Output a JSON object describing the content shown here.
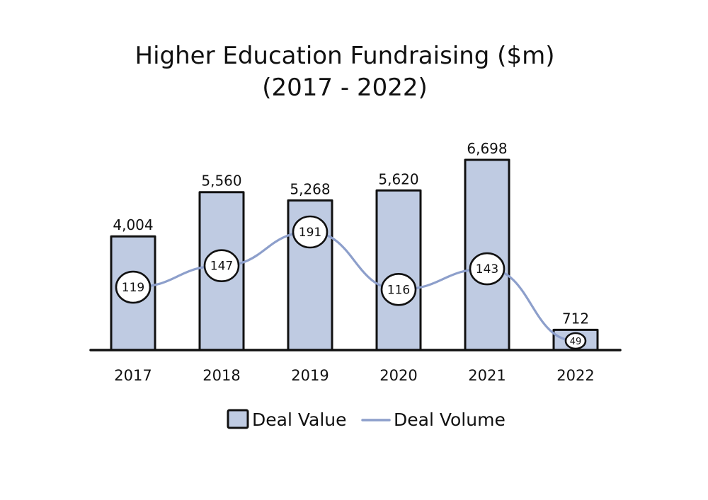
{
  "chart_data": {
    "type": "bar",
    "title": "Higher Education Fundraising ($m)",
    "subtitle": "(2017 - 2022)",
    "categories": [
      "2017",
      "2018",
      "2019",
      "2020",
      "2021",
      "2022"
    ],
    "series": [
      {
        "name": "Deal Value",
        "type": "bar",
        "values": [
          4004,
          5560,
          5268,
          5620,
          6698,
          712
        ],
        "labels": [
          "4,004",
          "5,560",
          "5,268",
          "5,620",
          "6,698",
          "712"
        ],
        "color": "#bfcbe2"
      },
      {
        "name": "Deal Volume",
        "type": "line",
        "values": [
          119,
          147,
          191,
          116,
          143,
          49
        ],
        "labels": [
          "119",
          "147",
          "191",
          "116",
          "143",
          "49"
        ],
        "color": "#8d9fcb"
      }
    ],
    "legend": {
      "position": "bottom-center",
      "items": [
        "Deal Value",
        "Deal Volume"
      ]
    },
    "ylim": [
      0,
      7000
    ],
    "grid": false
  }
}
